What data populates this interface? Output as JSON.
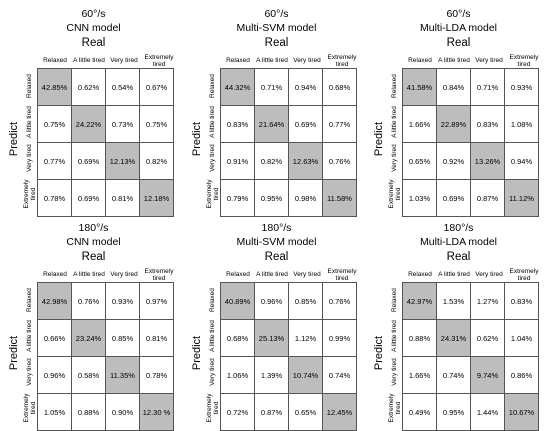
{
  "column_labels": [
    "Relaxed",
    "A little tired",
    "Very tired",
    "Extremely tired"
  ],
  "row_labels": [
    "Relaxed",
    "A little tired",
    "Very tired",
    "Extremely tired"
  ],
  "real_label": "Real",
  "predict_label": "Predict",
  "chart_data": [
    {
      "type": "heatmap",
      "speed": "60°/s",
      "title": "CNN model",
      "values": [
        [
          "42.85%",
          "0.62%",
          "0.54%",
          "0.67%"
        ],
        [
          "0.75%",
          "24.22%",
          "0.73%",
          "0.75%"
        ],
        [
          "0.77%",
          "0.69%",
          "12.13%",
          "0.82%"
        ],
        [
          "0.78%",
          "0.69%",
          "0.81%",
          "12.18%"
        ]
      ]
    },
    {
      "type": "heatmap",
      "speed": "60°/s",
      "title": "Multi-SVM model",
      "values": [
        [
          "44.32%",
          "0.71%",
          "0.94%",
          "0.68%"
        ],
        [
          "0.83%",
          "21.64%",
          "0.69%",
          "0.77%"
        ],
        [
          "0.91%",
          "0.82%",
          "12.63%",
          "0.76%"
        ],
        [
          "0.79%",
          "0.95%",
          "0.98%",
          "11.58%"
        ]
      ]
    },
    {
      "type": "heatmap",
      "speed": "60°/s",
      "title": "Multi-LDA model",
      "values": [
        [
          "41.58%",
          "0.84%",
          "0.71%",
          "0.93%"
        ],
        [
          "1.66%",
          "22.89%",
          "0.83%",
          "1.08%"
        ],
        [
          "0.65%",
          "0.92%",
          "13.26%",
          "0.94%"
        ],
        [
          "1.03%",
          "0.69%",
          "0.87%",
          "11.12%"
        ]
      ]
    },
    {
      "type": "heatmap",
      "speed": "180°/s",
      "title": "CNN model",
      "values": [
        [
          "42.98%",
          "0.76%",
          "0.93%",
          "0.97%"
        ],
        [
          "0.66%",
          "23.24%",
          "0.85%",
          "0.81%"
        ],
        [
          "0.96%",
          "0.58%",
          "11.35%",
          "0.78%"
        ],
        [
          "1.05%",
          "0.88%",
          "0.90%",
          "12.30 %"
        ]
      ]
    },
    {
      "type": "heatmap",
      "speed": "180°/s",
      "title": "Multi-SVM model",
      "values": [
        [
          "40.89%",
          "0.96%",
          "0.85%",
          "0.76%"
        ],
        [
          "0.68%",
          "25.13%",
          "1.12%",
          "0.99%"
        ],
        [
          "1.06%",
          "1.39%",
          "10.74%",
          "0.74%"
        ],
        [
          "0.72%",
          "0.87%",
          "0.65%",
          "12.45%"
        ]
      ]
    },
    {
      "type": "heatmap",
      "speed": "180°/s",
      "title": "Multi-LDA model",
      "values": [
        [
          "42.97%",
          "1.53%",
          "1.27%",
          "0.83%"
        ],
        [
          "0.88%",
          "24.31%",
          "0.62%",
          "1.04%"
        ],
        [
          "1.66%",
          "0.74%",
          "9.74%",
          "0.86%"
        ],
        [
          "0.49%",
          "0.95%",
          "1.44%",
          "10.67%"
        ]
      ]
    }
  ]
}
